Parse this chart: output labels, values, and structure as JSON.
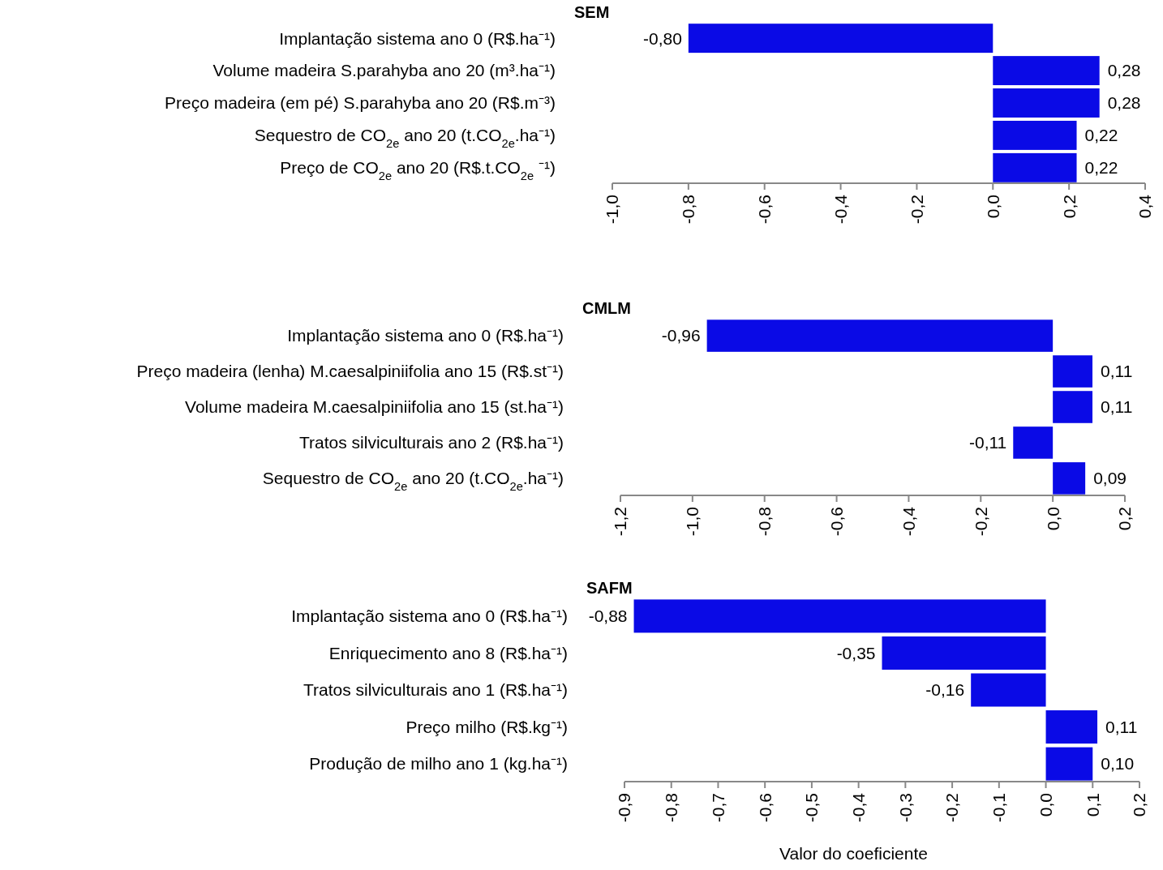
{
  "chart_data": [
    {
      "type": "bar",
      "orientation": "horizontal",
      "title": "SEM",
      "categories": [
        "Implantação sistema ano 0 (R$.ha⁻¹)",
        "Volume madeira S.parahyba ano 20 (m³.ha⁻¹)",
        "Preço madeira (em pé)  S.parahyba ano 20 (R$.m⁻³)",
        "Sequestro de CO$_{2e}$ ano 20 (t.CO$_{2e}$.ha⁻¹)",
        "Preço de CO$_{2e}$ ano 20 (R$.t.CO$_{2e}$ ⁻¹)"
      ],
      "values": [
        -0.8,
        0.28,
        0.28,
        0.22,
        0.22
      ],
      "value_labels": [
        "-0,80",
        "0,28",
        "0,28",
        "0,22",
        "0,22"
      ],
      "color": "#0a0ae6",
      "xlim": [
        -1.0,
        0.4
      ],
      "xticks": [
        {
          "value": -1.0,
          "label": "-1,0"
        },
        {
          "value": -0.8,
          "label": "-0,8"
        },
        {
          "value": -0.6,
          "label": "-0,6"
        },
        {
          "value": -0.4,
          "label": "-0,4"
        },
        {
          "value": -0.2,
          "label": "-0,2"
        },
        {
          "value": 0,
          "label": "0,0"
        },
        {
          "value": 0.2,
          "label": "0,2"
        },
        {
          "value": 0.4,
          "label": "0,4"
        }
      ]
    },
    {
      "type": "bar",
      "orientation": "horizontal",
      "title": "CMLM",
      "categories": [
        "Implantação sistema ano 0 (R$.ha⁻¹)",
        "Preço madeira (lenha) M.caesalpiniifolia ano 15 (R$.st⁻¹)",
        "Volume madeira M.caesalpiniifolia ano 15 (st.ha⁻¹)",
        "Tratos silviculturais ano 2 (R$.ha⁻¹)",
        "Sequestro de CO$_{2e}$ ano 20 (t.CO$_{2e}$.ha⁻¹)"
      ],
      "values": [
        -0.96,
        0.11,
        0.11,
        -0.11,
        0.09
      ],
      "value_labels": [
        "-0,96",
        "0,11",
        "0,11",
        "-0,11",
        "0,09"
      ],
      "color": "#0a0ae6",
      "xlim": [
        -1.2,
        0.2
      ],
      "xticks": [
        {
          "value": -1.2,
          "label": "-1,2"
        },
        {
          "value": -1.0,
          "label": "-1,0"
        },
        {
          "value": -0.8,
          "label": "-0,8"
        },
        {
          "value": -0.6,
          "label": "-0,6"
        },
        {
          "value": -0.4,
          "label": "-0,4"
        },
        {
          "value": -0.2,
          "label": "-0,2"
        },
        {
          "value": 0,
          "label": "0,0"
        },
        {
          "value": 0.2,
          "label": "0,2"
        }
      ]
    },
    {
      "type": "bar",
      "orientation": "horizontal",
      "title": "SAFM",
      "xlabel": "Valor do coeficiente",
      "categories": [
        "Implantação sistema ano 0 (R$.ha⁻¹)",
        "Enriquecimento ano 8 (R$.ha⁻¹)",
        "Tratos silviculturais ano 1 (R$.ha⁻¹)",
        "Preço milho (R$.kg⁻¹)",
        "Produção de milho ano 1 (kg.ha⁻¹)"
      ],
      "values": [
        -0.88,
        -0.35,
        -0.16,
        0.11,
        0.1
      ],
      "value_labels": [
        "-0,88",
        "-0,35",
        "-0,16",
        "0,11",
        "0,10"
      ],
      "color": "#0a0ae6",
      "xlim": [
        -0.9,
        0.2
      ],
      "xticks": [
        {
          "value": -0.9,
          "label": "-0,9"
        },
        {
          "value": -0.8,
          "label": "-0,8"
        },
        {
          "value": -0.7,
          "label": "-0,7"
        },
        {
          "value": -0.6,
          "label": "-0,6"
        },
        {
          "value": -0.5,
          "label": "-0,5"
        },
        {
          "value": -0.4,
          "label": "-0,4"
        },
        {
          "value": -0.3,
          "label": "-0,3"
        },
        {
          "value": -0.2,
          "label": "-0,2"
        },
        {
          "value": -0.1,
          "label": "-0,1"
        },
        {
          "value": 0,
          "label": "0,0"
        },
        {
          "value": 0.1,
          "label": "0,1"
        },
        {
          "value": 0.2,
          "label": "0,2"
        }
      ]
    }
  ]
}
